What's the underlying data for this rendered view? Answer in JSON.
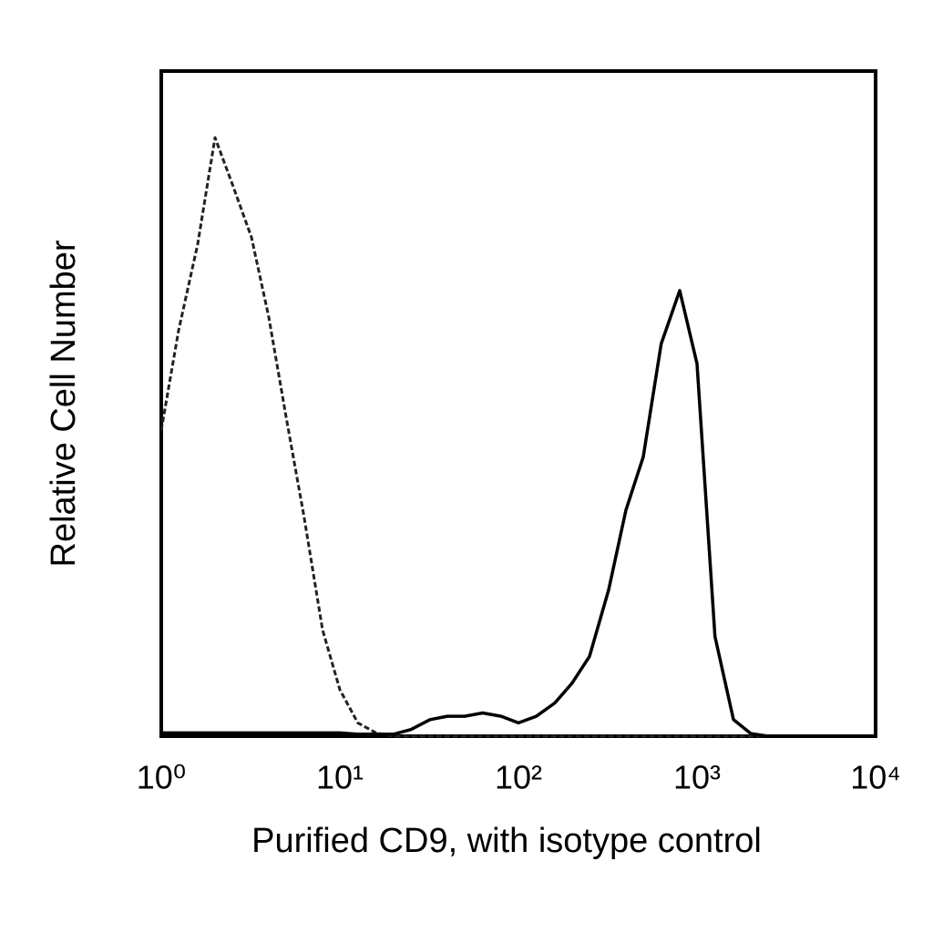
{
  "chart_data": {
    "type": "line",
    "x_label": "Purified CD9, with isotype control",
    "y_label": "Relative Cell Number",
    "xscale": "log",
    "xlim": [
      1,
      10000
    ],
    "xticks": [
      {
        "value": 1,
        "label": "10⁰"
      },
      {
        "value": 10,
        "label": "10¹"
      },
      {
        "value": 100,
        "label": "10²"
      },
      {
        "value": 1000,
        "label": "10³"
      },
      {
        "value": 10000,
        "label": "10⁴"
      }
    ],
    "ylim": [
      0,
      100
    ],
    "grid": false,
    "x": [
      1,
      1.25,
      1.6,
      2,
      2.5,
      3.2,
      4,
      5,
      6.3,
      8,
      10,
      12.6,
      16,
      20,
      25,
      32,
      40,
      50,
      63,
      80,
      100,
      126,
      160,
      200,
      250,
      320,
      400,
      500,
      630,
      800,
      1000,
      1260,
      1600,
      2000,
      2500,
      3200,
      4000,
      5000,
      6300,
      8000,
      10000
    ],
    "series": [
      {
        "color": "#222222",
        "linestyle": "dashed",
        "values": [
          46,
          61,
          74,
          90,
          83,
          75,
          63,
          48,
          33,
          16,
          7,
          2,
          0.5,
          0,
          0,
          0,
          0,
          0,
          0,
          0,
          0,
          0,
          0,
          0,
          0,
          0,
          0,
          0,
          0,
          0,
          0,
          0,
          0,
          0,
          0,
          0,
          0,
          0,
          0,
          0,
          0
        ]
      },
      {
        "color": "#000000",
        "linestyle": "solid",
        "values": [
          0.5,
          0.5,
          0.5,
          0.5,
          0.5,
          0.5,
          0.5,
          0.5,
          0.5,
          0.5,
          0.5,
          0.3,
          0.3,
          0.3,
          1,
          2.5,
          3,
          3,
          3.5,
          3,
          2,
          3,
          5,
          8,
          12,
          22,
          34,
          42,
          59,
          67,
          56,
          15,
          2.5,
          0.4,
          0,
          0,
          0,
          0,
          0,
          0,
          0
        ]
      }
    ]
  }
}
